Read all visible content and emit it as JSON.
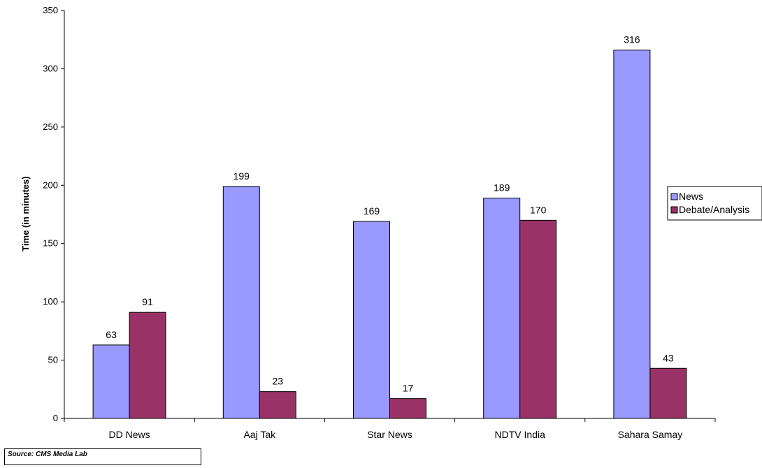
{
  "chart_data": {
    "type": "bar",
    "categories": [
      "DD News",
      "Aaj Tak",
      "Star News",
      "NDTV India",
      "Sahara Samay"
    ],
    "series": [
      {
        "name": "News",
        "values": [
          63,
          199,
          169,
          189,
          316
        ],
        "color": "#9999ff"
      },
      {
        "name": "Debate/Analysis",
        "values": [
          91,
          23,
          17,
          170,
          43
        ],
        "color": "#993366"
      }
    ],
    "ylabel": "Time (in minutes)",
    "ylim": [
      0,
      350
    ],
    "yticks": [
      0,
      50,
      100,
      150,
      200,
      250,
      300,
      350
    ],
    "grid": false,
    "legend_position": "right"
  },
  "source": {
    "text": "Source: CMS Media Lab"
  }
}
